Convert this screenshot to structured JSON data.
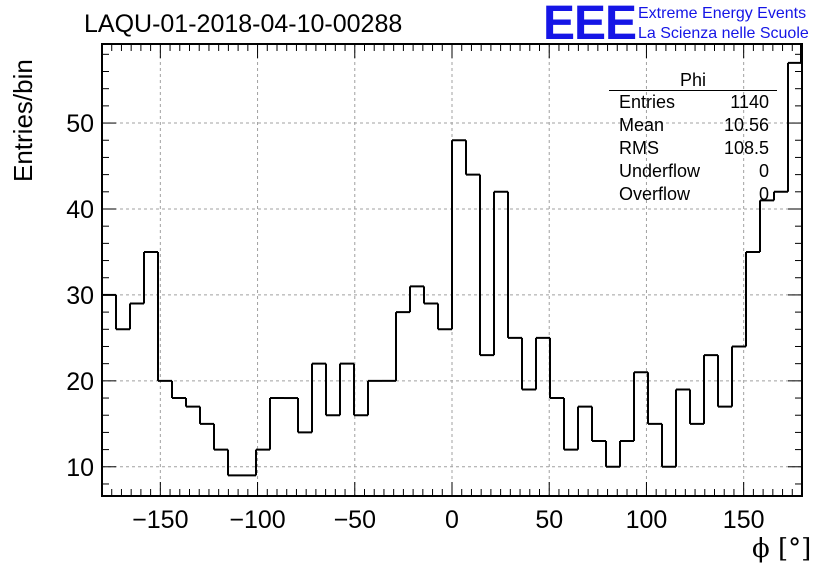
{
  "header": {
    "title": "LAQU-01-2018-04-10-00288",
    "logo_mark": "EEE",
    "logo_line1": "Extreme Energy Events",
    "logo_line2": "La Scienza nelle Scuole"
  },
  "stats": {
    "title": "Phi",
    "rows": [
      {
        "label": "Entries",
        "value": "1140"
      },
      {
        "label": "Mean",
        "value": "10.56"
      },
      {
        "label": "RMS",
        "value": "108.5"
      },
      {
        "label": "Underflow",
        "value": "0"
      },
      {
        "label": "Overflow",
        "value": "0"
      }
    ]
  },
  "colors": {
    "line": "#000000",
    "grid": "#a0a0a0",
    "logo": "#1515e6"
  },
  "chart_data": {
    "type": "histogram",
    "title": "LAQU-01-2018-04-10-00288",
    "xlabel": "ϕ [°]",
    "ylabel": "Entries/bin",
    "xlim": [
      -180,
      180
    ],
    "ylim": [
      6.6,
      59.2
    ],
    "xticks": [
      -150,
      -100,
      -50,
      0,
      50,
      100,
      150
    ],
    "xtick_labels": [
      "−150",
      "−100",
      "−50",
      "0",
      "50",
      "100",
      "150"
    ],
    "yticks": [
      10,
      20,
      30,
      40,
      50
    ],
    "ytick_labels": [
      "10",
      "20",
      "30",
      "40",
      "50"
    ],
    "grid": true,
    "bin_edges_start": -180,
    "bin_width": 7.2,
    "values": [
      30,
      26,
      29,
      35,
      20,
      18,
      17,
      15,
      12,
      9,
      9,
      12,
      18,
      18,
      14,
      22,
      16,
      22,
      16,
      20,
      20,
      28,
      31,
      29,
      26,
      48,
      44,
      23,
      42,
      25,
      19,
      25,
      18,
      12,
      17,
      13,
      10,
      13,
      21,
      15,
      10,
      19,
      15,
      23,
      17,
      24,
      35,
      41,
      42,
      57
    ]
  }
}
